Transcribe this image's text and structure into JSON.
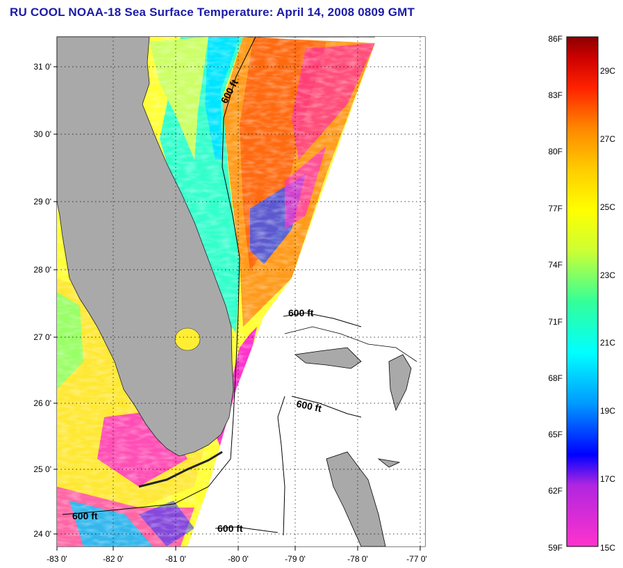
{
  "title": "RU COOL  NOAA-18  Sea Surface Temperature:  April 14, 2008 0809 GMT",
  "map": {
    "lat_labels": [
      "31 0'",
      "30 0'",
      "29 0'",
      "28 0'",
      "27 0'",
      "26 0'",
      "25 0'",
      "24 0'"
    ],
    "lon_labels": [
      "-83 0'",
      "-82 0'",
      "-81 0'",
      "-80 0'",
      "-79 0'",
      "-78 0'",
      "-77 0'"
    ],
    "contour_labels": [
      "600 ft",
      "600 ft",
      "600 ft",
      "600 ft",
      "600 ft"
    ]
  },
  "colorbar": {
    "f_labels": [
      "86F",
      "83F",
      "80F",
      "77F",
      "74F",
      "71F",
      "68F",
      "65F",
      "62F",
      "59F"
    ],
    "c_labels": [
      "29C",
      "27C",
      "25C",
      "23C",
      "21C",
      "19C",
      "17C",
      "15C"
    ]
  },
  "colors": {
    "land": "#a9a9a9",
    "title": "#1b1ba8",
    "colorbar_stops": [
      "#ff33cc",
      "#8a2be2",
      "#0000ff",
      "#0099ff",
      "#00ffff",
      "#33ff99",
      "#ccff33",
      "#ffff00",
      "#ffcc00",
      "#ff8800",
      "#ff4400",
      "#ff0000",
      "#8b0000"
    ]
  }
}
